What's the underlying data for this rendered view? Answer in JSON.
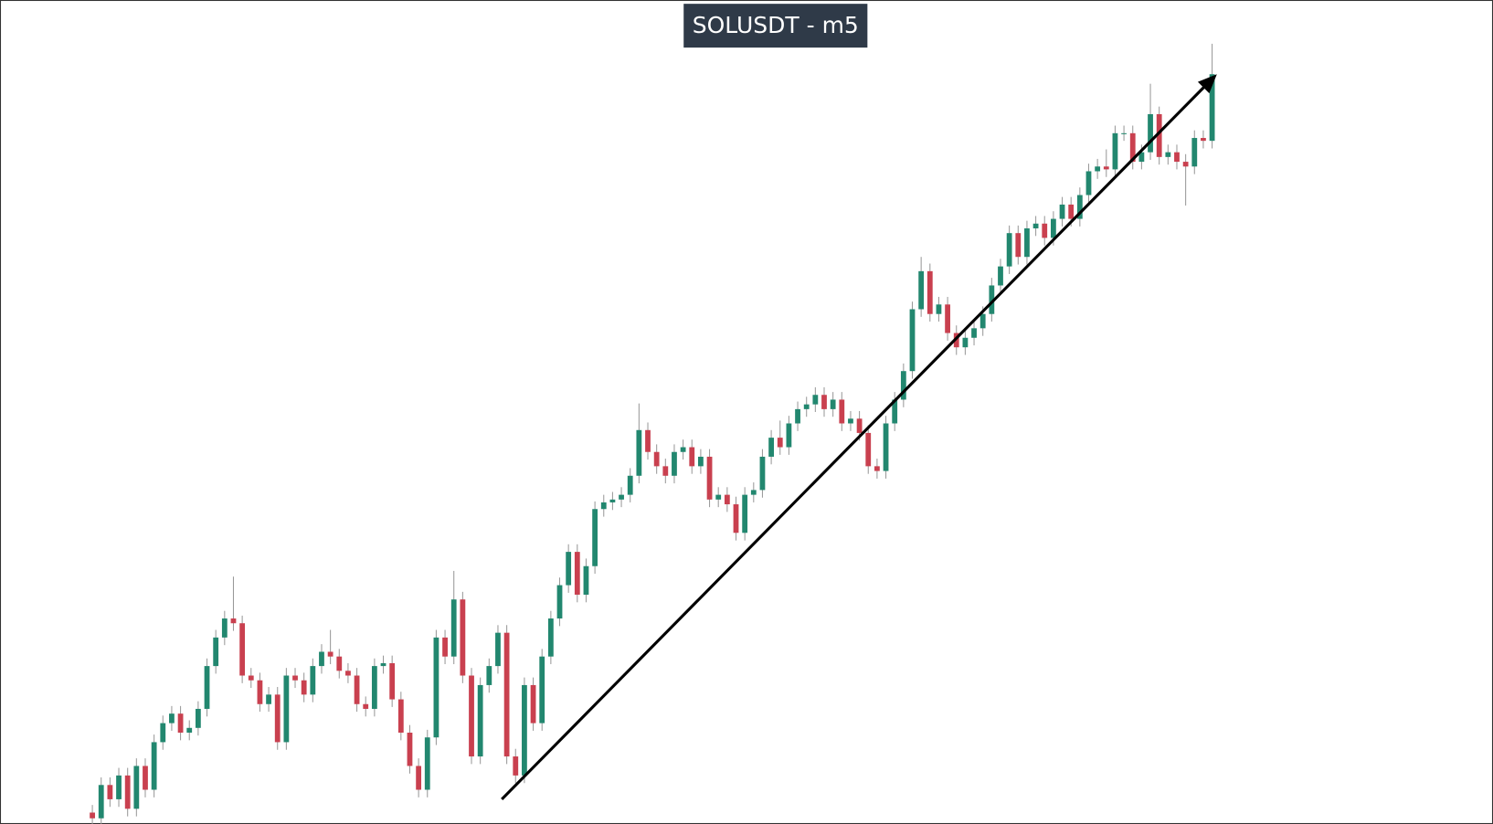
{
  "chart_data": {
    "type": "candlestick",
    "title": "SOLUSDT - m5",
    "up_color": "#22876f",
    "down_color": "#c9404f",
    "ylim": [
      0,
      866
    ],
    "open": [
      12,
      6,
      41,
      26,
      51,
      16,
      61,
      36,
      86,
      106,
      116,
      96,
      101,
      121,
      166,
      196,
      216,
      211,
      156,
      151,
      126,
      136,
      86,
      156,
      151,
      136,
      166,
      181,
      176,
      161,
      156,
      126,
      121,
      166,
      169,
      131,
      96,
      61,
      36,
      91,
      196,
      176,
      236,
      156,
      71,
      146,
      166,
      201,
      71,
      51,
      146,
      106,
      176,
      216,
      251,
      286,
      241,
      271,
      331,
      338,
      341,
      346,
      366,
      414,
      391,
      376,
      366,
      391,
      396,
      376,
      386,
      341,
      346,
      336,
      306,
      346,
      351,
      386,
      406,
      396,
      421,
      436,
      441,
      451,
      436,
      446,
      421,
      426,
      411,
      376,
      371,
      421,
      446,
      476,
      541,
      581,
      536,
      546,
      516,
      501,
      511,
      521,
      536,
      566,
      586,
      621,
      596,
      626,
      631,
      616,
      636,
      651,
      636,
      661,
      686,
      691,
      688,
      726,
      726,
      696,
      706,
      746,
      701,
      706,
      696,
      691,
      721,
      718
    ],
    "high": [
      20,
      49,
      49,
      59,
      59,
      69,
      69,
      94,
      114,
      124,
      124,
      109,
      129,
      174,
      204,
      224,
      260,
      219,
      164,
      159,
      144,
      144,
      164,
      164,
      159,
      174,
      189,
      204,
      184,
      169,
      164,
      134,
      174,
      177,
      177,
      139,
      104,
      69,
      99,
      204,
      204,
      266,
      244,
      164,
      154,
      174,
      209,
      209,
      79,
      154,
      154,
      184,
      224,
      259,
      294,
      294,
      279,
      339,
      346,
      349,
      354,
      374,
      442,
      422,
      399,
      384,
      399,
      404,
      404,
      394,
      394,
      354,
      354,
      344,
      354,
      359,
      394,
      414,
      424,
      429,
      444,
      449,
      459,
      459,
      454,
      454,
      434,
      434,
      419,
      384,
      429,
      454,
      484,
      549,
      596,
      589,
      554,
      554,
      524,
      519,
      529,
      544,
      574,
      594,
      629,
      629,
      634,
      639,
      639,
      644,
      659,
      659,
      669,
      694,
      699,
      709,
      734,
      734,
      734,
      714,
      778,
      754,
      714,
      714,
      704,
      729,
      729,
      820
    ],
    "low": [
      -2,
      -2,
      18,
      18,
      8,
      8,
      28,
      28,
      78,
      98,
      88,
      88,
      93,
      113,
      158,
      188,
      203,
      148,
      143,
      118,
      118,
      78,
      78,
      143,
      128,
      128,
      158,
      168,
      153,
      148,
      118,
      113,
      113,
      158,
      123,
      88,
      53,
      28,
      28,
      83,
      168,
      168,
      148,
      63,
      63,
      138,
      158,
      63,
      43,
      43,
      98,
      98,
      168,
      208,
      243,
      233,
      233,
      263,
      323,
      330,
      333,
      338,
      358,
      383,
      368,
      358,
      358,
      383,
      368,
      368,
      333,
      333,
      328,
      298,
      298,
      338,
      343,
      378,
      388,
      388,
      413,
      428,
      433,
      428,
      428,
      413,
      413,
      403,
      368,
      363,
      363,
      413,
      438,
      468,
      533,
      528,
      528,
      508,
      493,
      493,
      503,
      513,
      528,
      558,
      578,
      588,
      588,
      618,
      608,
      608,
      628,
      628,
      628,
      653,
      678,
      680,
      680,
      718,
      688,
      688,
      698,
      693,
      693,
      688,
      650,
      683,
      710,
      710
    ],
    "close": [
      6,
      41,
      26,
      51,
      16,
      61,
      36,
      86,
      106,
      116,
      96,
      101,
      121,
      166,
      196,
      216,
      211,
      156,
      151,
      126,
      136,
      86,
      156,
      151,
      136,
      166,
      181,
      176,
      161,
      156,
      126,
      121,
      166,
      169,
      131,
      96,
      61,
      36,
      91,
      196,
      176,
      236,
      156,
      71,
      146,
      166,
      201,
      71,
      51,
      146,
      106,
      176,
      216,
      251,
      286,
      241,
      271,
      331,
      338,
      341,
      346,
      366,
      414,
      391,
      376,
      366,
      391,
      396,
      376,
      386,
      341,
      346,
      336,
      306,
      346,
      351,
      386,
      406,
      396,
      421,
      436,
      441,
      451,
      436,
      446,
      421,
      426,
      411,
      376,
      371,
      421,
      446,
      476,
      541,
      581,
      536,
      546,
      516,
      501,
      511,
      521,
      536,
      566,
      586,
      621,
      596,
      626,
      631,
      616,
      636,
      651,
      636,
      661,
      686,
      691,
      688,
      726,
      726,
      696,
      706,
      746,
      701,
      706,
      696,
      691,
      721,
      718,
      788
    ]
  }
}
